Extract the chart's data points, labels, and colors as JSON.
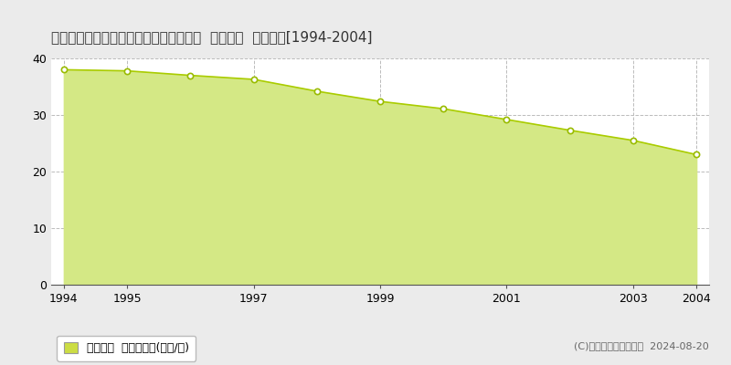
{
  "title": "岐阜県各務原市つつじが丘５丁目１０番  地価公示  地価推移[1994-2004]",
  "years": [
    1994,
    1995,
    1996,
    1997,
    1998,
    1999,
    2000,
    2001,
    2002,
    2003,
    2004
  ],
  "values": [
    38.0,
    37.8,
    37.0,
    36.3,
    34.2,
    32.4,
    31.1,
    29.2,
    27.3,
    25.5,
    23.0
  ],
  "line_color": "#aacc00",
  "fill_color": "#d4e885",
  "fill_alpha": 1.0,
  "marker_color": "white",
  "marker_edge_color": "#99bb00",
  "background_color": "#ebebeb",
  "plot_bg_color": "#ffffff",
  "ylim": [
    0,
    40
  ],
  "yticks": [
    0,
    10,
    20,
    30,
    40
  ],
  "grid_color": "#bbbbbb",
  "xticks": [
    1994,
    1995,
    1997,
    1999,
    2001,
    2003,
    2004
  ],
  "legend_label": "地価公示  平均坪単価(万円/坪)",
  "legend_square_color": "#ccdd44",
  "copyright_text": "(C)土地価格ドットコム  2024-08-20",
  "title_fontsize": 11,
  "tick_fontsize": 9,
  "legend_fontsize": 9,
  "copyright_fontsize": 8
}
